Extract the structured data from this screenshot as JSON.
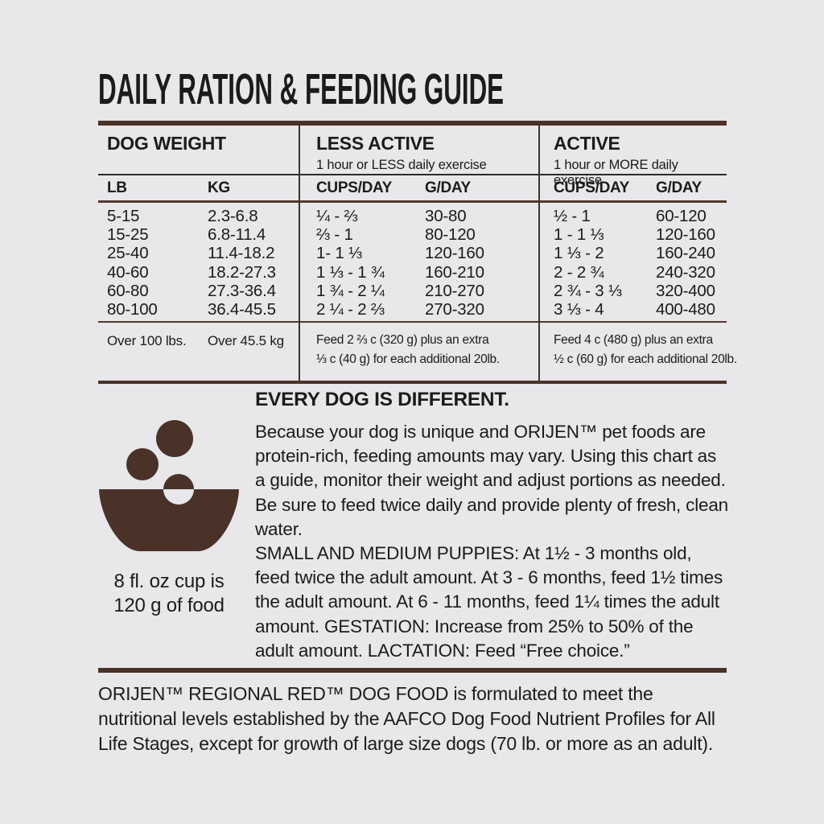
{
  "page": {
    "title": "DAILY RATION & FEEDING GUIDE"
  },
  "colors": {
    "background": "#e8e7ea",
    "accent_brown": "#4a3228",
    "ink": "#1c1b1c"
  },
  "table": {
    "col_groups": [
      {
        "label": "DOG WEIGHT",
        "sub": ""
      },
      {
        "label": "LESS ACTIVE",
        "sub": "1 hour or LESS daily exercise"
      },
      {
        "label": "ACTIVE",
        "sub": "1 hour or MORE daily exercise"
      }
    ],
    "sub_headers": [
      "LB",
      "KG",
      "CUPS/DAY",
      "G/DAY",
      "CUPS/DAY",
      "G/DAY"
    ],
    "rows": [
      [
        "5-15",
        "2.3-6.8",
        "¼ - ⅔",
        "30-80",
        "½ - 1",
        "60-120"
      ],
      [
        "15-25",
        "6.8-11.4",
        "⅔ - 1",
        "80-120",
        "1 - 1 ⅓",
        "120-160"
      ],
      [
        "25-40",
        "11.4-18.2",
        "1- 1 ⅓",
        "120-160",
        "1 ⅓ - 2",
        "160-240"
      ],
      [
        "40-60",
        "18.2-27.3",
        "1 ⅓ - 1 ¾",
        "160-210",
        "2 - 2 ¾",
        "240-320"
      ],
      [
        "60-80",
        "27.3-36.4",
        "1 ¾ - 2 ¼",
        "210-270",
        "2 ¾ - 3 ⅓",
        "320-400"
      ],
      [
        "80-100",
        "36.4-45.5",
        "2 ¼ - 2 ⅔",
        "270-320",
        "3 ⅓ - 4",
        "400-480"
      ]
    ],
    "over_row": {
      "lb": "Over 100 lbs.",
      "kg": "Over 45.5 kg",
      "less_active_line1": "Feed 2 ⅔ c (320 g) plus an extra",
      "less_active_line2": "⅓ c (40 g) for each additional 20lb.",
      "active_line1": "Feed 4 c (480 g) plus an extra",
      "active_line2": "½ c (60 g) for each additional 20lb."
    }
  },
  "info": {
    "heading": "EVERY DOG IS DIFFERENT.",
    "body": "Because your dog is unique and ORIJEN™ pet foods are protein-rich, feeding amounts may vary. Using this chart as a guide, monitor their weight and adjust portions as needed. Be sure to feed twice daily and provide plenty of fresh, clean water.",
    "puppies": "SMALL AND MEDIUM PUPPIES: At 1½ - 3 months old, feed twice the adult amount. At 3 - 6 months, feed 1½ times the adult amount. At 6 - 11 months, feed 1¼ times the adult amount. GESTATION: Increase from 25% to 50% of the adult amount. LACTATION: Feed “Free choice.”",
    "bowl_icon": "bowl-with-kibble-icon",
    "cup_note_line1": "8 fl. oz cup is",
    "cup_note_line2": "120 g of food"
  },
  "footer": {
    "text": "ORIJEN™ REGIONAL RED™ DOG FOOD is formulated to meet the nutritional levels established by the AAFCO Dog Food Nutrient Profiles for All Life Stages, except for growth of large size dogs (70 lb. or more as an adult)."
  }
}
